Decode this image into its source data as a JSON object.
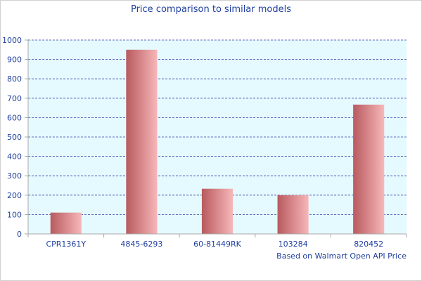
{
  "chart_data": {
    "type": "bar",
    "title": "Price comparison to similar models",
    "xlabel": "",
    "ylabel": "",
    "categories": [
      "CPR1361Y",
      "4845-6293",
      "60-81449RK",
      "103284",
      "820452"
    ],
    "values": [
      110,
      950,
      233,
      200,
      667
    ],
    "ylim": [
      0,
      1000
    ],
    "yticks": [
      0,
      100,
      200,
      300,
      400,
      500,
      600,
      700,
      800,
      900,
      1000
    ],
    "grid": true,
    "legend": "none",
    "annotation": "Based on Walmart Open API Price"
  },
  "colors": {
    "plot_background": "#e4fafe",
    "grid": "#3a3aa8",
    "bar_dark": "#b85a5e",
    "bar_light": "#f7b7b9",
    "text": "#1f3f9f",
    "axis": "#a8a8a8"
  }
}
